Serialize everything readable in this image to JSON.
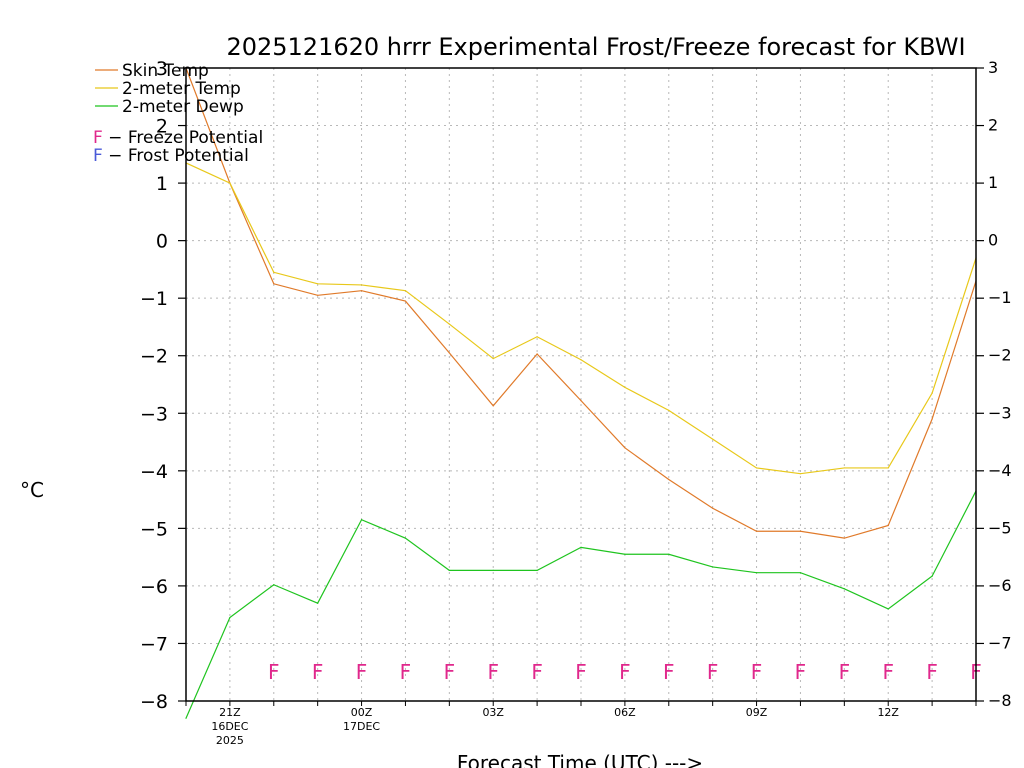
{
  "chart_data": {
    "type": "line",
    "title": "2025121620 hrrr Experimental Frost/Freeze forecast for KBWI",
    "xlabel": "Forecast Time (UTC) --->",
    "ylabel": "°C",
    "ylim": [
      -8,
      3
    ],
    "yticks": [
      3,
      2,
      1,
      0,
      -1,
      -2,
      -3,
      -4,
      -5,
      -6,
      -7,
      -8
    ],
    "ytick_labels": [
      "3",
      "2",
      "1",
      "0",
      "−1",
      "−2",
      "−3",
      "−4",
      "−5",
      "−6",
      "−7",
      "−8"
    ],
    "xlim": [
      20,
      38
    ],
    "grid": true,
    "x": [
      20,
      21,
      22,
      23,
      24,
      25,
      26,
      27,
      28,
      29,
      30,
      31,
      32,
      33,
      34,
      35,
      36,
      37,
      38
    ],
    "x_ticks": [
      {
        "x": 21,
        "lines": [
          "21Z",
          "16DEC",
          "2025"
        ]
      },
      {
        "x": 24,
        "lines": [
          "00Z",
          "17DEC"
        ]
      },
      {
        "x": 27,
        "lines": [
          "03Z"
        ]
      },
      {
        "x": 30,
        "lines": [
          "06Z"
        ]
      },
      {
        "x": 33,
        "lines": [
          "09Z"
        ]
      },
      {
        "x": 36,
        "lines": [
          "12Z"
        ]
      }
    ],
    "series": [
      {
        "name": "Skin Temp",
        "color": "#e07a2a",
        "values": [
          3.0,
          1.0,
          -0.75,
          -0.95,
          -0.87,
          -1.05,
          -1.95,
          -2.87,
          -1.97,
          -2.78,
          -3.6,
          -4.15,
          -4.65,
          -5.05,
          -5.05,
          -5.17,
          -4.95,
          -3.1,
          -0.7
        ]
      },
      {
        "name": "2-meter Temp",
        "color": "#e8c81a",
        "values": [
          1.35,
          1.0,
          -0.55,
          -0.75,
          -0.77,
          -0.87,
          -1.45,
          -2.05,
          -1.67,
          -2.07,
          -2.55,
          -2.95,
          -3.45,
          -3.95,
          -4.05,
          -3.95,
          -3.95,
          -2.65,
          -0.3
        ]
      },
      {
        "name": "2-meter Dewp",
        "color": "#1fc41f",
        "values": [
          -8.3,
          -6.55,
          -5.98,
          -6.3,
          -4.85,
          -5.17,
          -5.73,
          -5.73,
          -5.73,
          -5.33,
          -5.45,
          -5.45,
          -5.67,
          -5.77,
          -5.77,
          -6.05,
          -6.4,
          -5.83,
          -4.35
        ]
      }
    ],
    "flags": {
      "letter": "F",
      "y": -7.5,
      "color": "#e0288c",
      "x": [
        22,
        23,
        24,
        25,
        26,
        27,
        28,
        29,
        30,
        31,
        32,
        33,
        34,
        35,
        36,
        37,
        38
      ]
    },
    "legend": {
      "position": "top-left",
      "lines": [
        {
          "label": "Skin Temp",
          "color": "#e07a2a"
        },
        {
          "label": "2-meter Temp",
          "color": "#e8c81a"
        },
        {
          "label": "2-meter Dewp",
          "color": "#1fc41f"
        }
      ],
      "flag_entries": [
        {
          "letter": "F",
          "text": " − Freeze Potential",
          "color": "#e0288c"
        },
        {
          "letter": "F",
          "text": " − Frost Potential",
          "color": "#4a5ad8"
        }
      ]
    }
  }
}
